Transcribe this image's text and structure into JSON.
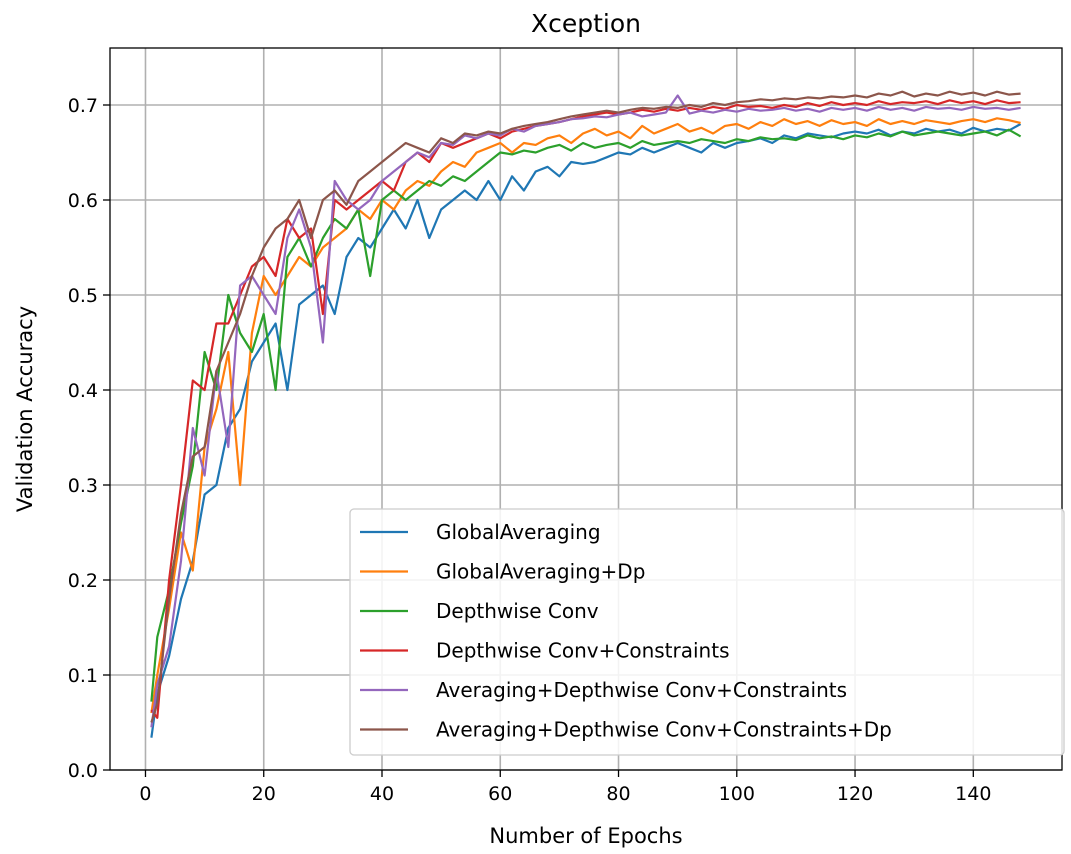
{
  "chart_data": {
    "type": "line",
    "title": "Xception",
    "xlabel": "Number of Epochs",
    "ylabel": "Validation Accuracy",
    "xlim": [
      -6,
      155
    ],
    "ylim": [
      0.0,
      0.76
    ],
    "xticks": [
      0,
      20,
      40,
      60,
      80,
      100,
      120,
      140
    ],
    "yticks": [
      0.0,
      0.1,
      0.2,
      0.3,
      0.4,
      0.5,
      0.6,
      0.7
    ],
    "xtick_labels": [
      "0",
      "20",
      "40",
      "60",
      "80",
      "100",
      "120",
      "140"
    ],
    "ytick_labels": [
      "0.0",
      "0.1",
      "0.2",
      "0.3",
      "0.4",
      "0.5",
      "0.6",
      "0.7"
    ],
    "grid": true,
    "legend_position": "lower-right",
    "x": [
      1,
      2,
      4,
      6,
      8,
      10,
      12,
      14,
      16,
      18,
      20,
      22,
      24,
      26,
      28,
      30,
      32,
      34,
      36,
      38,
      40,
      42,
      44,
      46,
      48,
      50,
      52,
      54,
      56,
      58,
      60,
      62,
      64,
      66,
      68,
      70,
      72,
      74,
      76,
      78,
      80,
      82,
      84,
      86,
      88,
      90,
      92,
      94,
      96,
      98,
      100,
      102,
      104,
      106,
      108,
      110,
      112,
      114,
      116,
      118,
      120,
      122,
      124,
      126,
      128,
      130,
      132,
      134,
      136,
      138,
      140,
      142,
      144,
      146,
      148
    ],
    "series": [
      {
        "name": "GlobalAveraging",
        "color": "#1f77b4",
        "values": [
          0.034,
          0.08,
          0.12,
          0.18,
          0.22,
          0.29,
          0.3,
          0.36,
          0.38,
          0.43,
          0.45,
          0.47,
          0.4,
          0.49,
          0.5,
          0.51,
          0.48,
          0.54,
          0.56,
          0.55,
          0.57,
          0.59,
          0.57,
          0.6,
          0.56,
          0.59,
          0.6,
          0.61,
          0.6,
          0.62,
          0.6,
          0.625,
          0.61,
          0.63,
          0.635,
          0.625,
          0.64,
          0.638,
          0.64,
          0.645,
          0.65,
          0.648,
          0.655,
          0.65,
          0.655,
          0.66,
          0.655,
          0.65,
          0.66,
          0.655,
          0.66,
          0.662,
          0.665,
          0.66,
          0.668,
          0.665,
          0.67,
          0.668,
          0.666,
          0.67,
          0.672,
          0.67,
          0.674,
          0.668,
          0.672,
          0.67,
          0.675,
          0.672,
          0.674,
          0.67,
          0.676,
          0.672,
          0.675,
          0.673,
          0.68
        ]
      },
      {
        "name": "GlobalAveraging+Dp",
        "color": "#ff7f0e",
        "values": [
          0.06,
          0.1,
          0.17,
          0.25,
          0.21,
          0.34,
          0.38,
          0.44,
          0.3,
          0.46,
          0.52,
          0.5,
          0.52,
          0.54,
          0.53,
          0.55,
          0.56,
          0.57,
          0.59,
          0.58,
          0.6,
          0.59,
          0.61,
          0.62,
          0.615,
          0.63,
          0.64,
          0.635,
          0.65,
          0.655,
          0.66,
          0.65,
          0.66,
          0.658,
          0.665,
          0.668,
          0.66,
          0.67,
          0.675,
          0.668,
          0.672,
          0.665,
          0.678,
          0.67,
          0.675,
          0.68,
          0.672,
          0.676,
          0.67,
          0.678,
          0.68,
          0.675,
          0.682,
          0.678,
          0.685,
          0.68,
          0.683,
          0.678,
          0.684,
          0.68,
          0.682,
          0.678,
          0.685,
          0.68,
          0.683,
          0.68,
          0.684,
          0.682,
          0.68,
          0.683,
          0.685,
          0.682,
          0.686,
          0.684,
          0.681
        ]
      },
      {
        "name": "Depthwise Conv",
        "color": "#2ca02c",
        "values": [
          0.072,
          0.14,
          0.19,
          0.26,
          0.32,
          0.44,
          0.4,
          0.5,
          0.46,
          0.44,
          0.48,
          0.4,
          0.54,
          0.56,
          0.53,
          0.56,
          0.58,
          0.57,
          0.59,
          0.52,
          0.6,
          0.61,
          0.6,
          0.61,
          0.62,
          0.615,
          0.625,
          0.62,
          0.63,
          0.64,
          0.65,
          0.648,
          0.652,
          0.65,
          0.655,
          0.658,
          0.652,
          0.66,
          0.655,
          0.658,
          0.66,
          0.655,
          0.662,
          0.658,
          0.66,
          0.662,
          0.66,
          0.664,
          0.662,
          0.66,
          0.664,
          0.662,
          0.666,
          0.664,
          0.665,
          0.663,
          0.668,
          0.665,
          0.667,
          0.664,
          0.668,
          0.666,
          0.67,
          0.667,
          0.672,
          0.668,
          0.67,
          0.672,
          0.67,
          0.668,
          0.67,
          0.672,
          0.668,
          0.674,
          0.667
        ]
      },
      {
        "name": "Depthwise Conv+Constraints",
        "color": "#d62728",
        "values": [
          0.063,
          0.055,
          0.2,
          0.3,
          0.41,
          0.4,
          0.47,
          0.47,
          0.5,
          0.53,
          0.54,
          0.52,
          0.58,
          0.56,
          0.57,
          0.48,
          0.6,
          0.59,
          0.6,
          0.61,
          0.62,
          0.61,
          0.64,
          0.65,
          0.64,
          0.66,
          0.655,
          0.66,
          0.665,
          0.67,
          0.665,
          0.672,
          0.675,
          0.678,
          0.68,
          0.682,
          0.685,
          0.688,
          0.69,
          0.692,
          0.69,
          0.692,
          0.695,
          0.693,
          0.696,
          0.694,
          0.697,
          0.695,
          0.698,
          0.696,
          0.7,
          0.698,
          0.699,
          0.697,
          0.7,
          0.698,
          0.702,
          0.699,
          0.703,
          0.7,
          0.702,
          0.7,
          0.704,
          0.701,
          0.703,
          0.702,
          0.704,
          0.701,
          0.705,
          0.702,
          0.704,
          0.701,
          0.705,
          0.702,
          0.703
        ]
      },
      {
        "name": "Averaging+Depthwise Conv+Constraints",
        "color": "#9467bd",
        "values": [
          0.045,
          0.09,
          0.13,
          0.22,
          0.36,
          0.31,
          0.42,
          0.34,
          0.51,
          0.52,
          0.5,
          0.48,
          0.56,
          0.59,
          0.55,
          0.45,
          0.62,
          0.6,
          0.59,
          0.6,
          0.62,
          0.63,
          0.64,
          0.65,
          0.645,
          0.66,
          0.658,
          0.668,
          0.665,
          0.67,
          0.668,
          0.675,
          0.672,
          0.678,
          0.68,
          0.682,
          0.685,
          0.686,
          0.688,
          0.687,
          0.69,
          0.692,
          0.688,
          0.69,
          0.692,
          0.71,
          0.691,
          0.694,
          0.692,
          0.695,
          0.693,
          0.696,
          0.694,
          0.695,
          0.697,
          0.694,
          0.696,
          0.693,
          0.697,
          0.695,
          0.697,
          0.694,
          0.698,
          0.695,
          0.697,
          0.694,
          0.698,
          0.696,
          0.697,
          0.695,
          0.698,
          0.696,
          0.697,
          0.695,
          0.697
        ]
      },
      {
        "name": "Averaging+Depthwise Conv+Constraints+Dp",
        "color": "#8c564b",
        "values": [
          0.05,
          0.07,
          0.18,
          0.27,
          0.33,
          0.34,
          0.42,
          0.45,
          0.48,
          0.52,
          0.55,
          0.57,
          0.58,
          0.6,
          0.56,
          0.6,
          0.61,
          0.595,
          0.62,
          0.63,
          0.64,
          0.65,
          0.66,
          0.655,
          0.65,
          0.665,
          0.66,
          0.67,
          0.668,
          0.672,
          0.67,
          0.675,
          0.678,
          0.68,
          0.682,
          0.685,
          0.688,
          0.69,
          0.692,
          0.694,
          0.692,
          0.695,
          0.697,
          0.696,
          0.698,
          0.697,
          0.7,
          0.698,
          0.702,
          0.7,
          0.703,
          0.704,
          0.706,
          0.705,
          0.707,
          0.706,
          0.708,
          0.707,
          0.709,
          0.708,
          0.71,
          0.708,
          0.712,
          0.71,
          0.714,
          0.709,
          0.712,
          0.71,
          0.714,
          0.711,
          0.713,
          0.71,
          0.714,
          0.711,
          0.712
        ]
      }
    ]
  }
}
